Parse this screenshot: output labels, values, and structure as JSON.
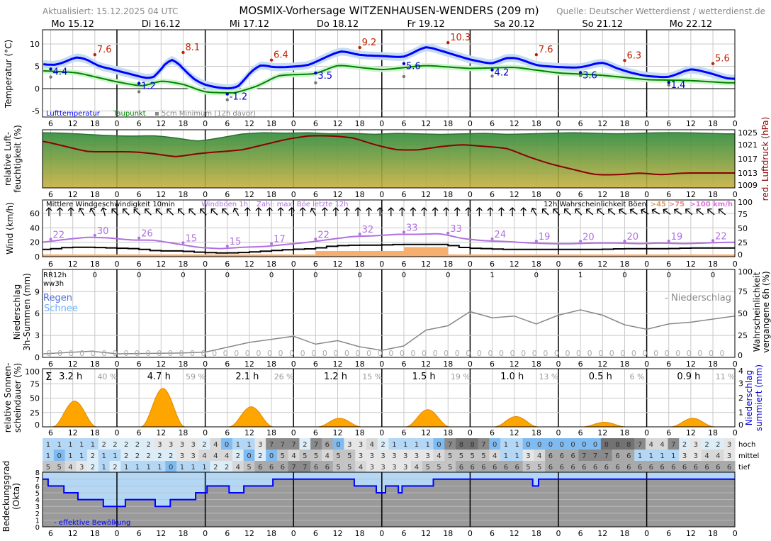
{
  "header": {
    "updated": "Aktualisiert: 15.12.2025 04 UTC",
    "title": "MOSMIX-Vorhersage WITZENHAUSEN-WENDERS (209 m)",
    "source": "Quelle: Deutscher Wetterdienst / wetterdienst.de",
    "days": [
      "Mo 15.12",
      "Di 16.12",
      "Mi 17.12",
      "Do 18.12",
      "Fr 19.12",
      "Sa 20.12",
      "So 21.12",
      "Mo 22.12"
    ]
  },
  "x_tick_labels": [
    "6",
    "12",
    "18",
    "0",
    "6",
    "12",
    "18",
    "0",
    "6",
    "12",
    "18",
    "0",
    "6",
    "12",
    "18",
    "0",
    "6",
    "12",
    "18",
    "0",
    "6",
    "12",
    "18",
    "0",
    "6",
    "12",
    "18",
    "0",
    "6",
    "12",
    "18",
    "0"
  ],
  "colors": {
    "temp": "#0000ff",
    "dew": "#008000",
    "max": "#c02000",
    "min": "#0000cc",
    "pressure": "#8b0000",
    "gust": "#b070e0",
    "wind": "#000000",
    "sun": "#ffa500",
    "prob": "#888888"
  },
  "chart_data": [
    {
      "type": "line",
      "title": "Temperatur",
      "ylabel": "Temperatur (°C)",
      "ylim": [
        -6,
        13
      ],
      "yticks": [
        "-5",
        "0",
        "5",
        "10"
      ],
      "legend": {
        "temp": "Lufttemperatur",
        "dew": "Taupunkt",
        "min5cm": "5cm Minimum (12h davor)"
      },
      "temp_hours": [
        4,
        7,
        10,
        13,
        16,
        19,
        22,
        25,
        28,
        31,
        34,
        37,
        39,
        42,
        45,
        48,
        51,
        54,
        57,
        60,
        63,
        66,
        70,
        76,
        82,
        85,
        90,
        96,
        102,
        108,
        114,
        120,
        126,
        130,
        133,
        138,
        144,
        150,
        156,
        160,
        164,
        168,
        174,
        180,
        186,
        190
      ],
      "temp": [
        5.5,
        5.2,
        6.0,
        7.2,
        6.5,
        5.0,
        4.5,
        3.8,
        3.2,
        2.5,
        2.2,
        5.5,
        7.0,
        4.5,
        2.0,
        0.8,
        0.3,
        0.0,
        0.2,
        3.5,
        5.5,
        4.8,
        4.8,
        5.2,
        7.5,
        8.5,
        7.5,
        7.3,
        7.0,
        9.5,
        8.0,
        6.5,
        5.5,
        7.0,
        6.8,
        5.2,
        4.8,
        4.7,
        6.0,
        4.5,
        3.5,
        2.8,
        2.5,
        4.5,
        3.3,
        2.2
      ],
      "dew_hours": [
        4,
        13,
        24,
        31,
        36,
        42,
        48,
        56,
        62,
        68,
        78,
        84,
        96,
        108,
        120,
        132,
        144,
        156,
        168,
        180,
        190
      ],
      "dew": [
        4.0,
        3.6,
        1.5,
        0.5,
        1.8,
        1.0,
        -0.8,
        -1.0,
        0.5,
        3.0,
        3.3,
        5.3,
        4.2,
        5.2,
        4.5,
        4.8,
        3.5,
        3.0,
        2.0,
        1.8,
        1.3
      ],
      "extremes": [
        {
          "h": 6,
          "v": 4.4,
          "kind": "min",
          "label": "4.4"
        },
        {
          "h": 18,
          "v": 7.6,
          "kind": "max",
          "label": "7.6"
        },
        {
          "h": 30,
          "v": 1.2,
          "kind": "min",
          "label": "1.2"
        },
        {
          "h": 42,
          "v": 8.1,
          "kind": "max",
          "label": "8.1"
        },
        {
          "h": 54,
          "v": -1.2,
          "kind": "min",
          "label": "-1.2"
        },
        {
          "h": 66,
          "v": 6.4,
          "kind": "max",
          "label": "6.4"
        },
        {
          "h": 78,
          "v": 3.5,
          "kind": "min",
          "label": "3.5"
        },
        {
          "h": 90,
          "v": 9.2,
          "kind": "max",
          "label": "9.2"
        },
        {
          "h": 102,
          "v": 5.6,
          "kind": "min",
          "label": "5.6"
        },
        {
          "h": 114,
          "v": 10.3,
          "kind": "max",
          "label": "10.3"
        },
        {
          "h": 126,
          "v": 4.2,
          "kind": "min",
          "label": "4.2"
        },
        {
          "h": 138,
          "v": 7.6,
          "kind": "max",
          "label": "7.6"
        },
        {
          "h": 150,
          "v": 3.6,
          "kind": "min",
          "label": "3.6"
        },
        {
          "h": 162,
          "v": 6.3,
          "kind": "max",
          "label": "6.3"
        },
        {
          "h": 174,
          "v": 1.4,
          "kind": "min",
          "label": "1.4"
        },
        {
          "h": 186,
          "v": 5.6,
          "kind": "max",
          "label": "5.6"
        }
      ],
      "min5cm": [
        {
          "h": 6,
          "v": 2.6
        },
        {
          "h": 30,
          "v": -0.7
        },
        {
          "h": 54,
          "v": -2.5
        },
        {
          "h": 78,
          "v": 1.3
        },
        {
          "h": 102,
          "v": 2.7
        },
        {
          "h": 126,
          "v": 2.8
        },
        {
          "h": 150,
          "v": 2.9
        },
        {
          "h": 174,
          "v": 0.8
        }
      ]
    },
    {
      "type": "area",
      "title": "Luftfeuchtigkeit / Luftdruck",
      "ylabel": "relative Luft-|feuchtigkeit (%)",
      "y2label": "red. Luftdruck (hPa)",
      "y2ticks": [
        "1009",
        "1013",
        "1017",
        "1021",
        "1025"
      ],
      "y2lim": [
        1009,
        1025
      ],
      "hours": [
        4,
        10,
        16,
        22,
        28,
        34,
        40,
        46,
        52,
        58,
        64,
        70,
        76,
        82,
        88,
        94,
        100,
        106,
        112,
        118,
        124,
        130,
        136,
        142,
        148,
        154,
        160,
        166,
        172,
        178,
        184,
        190
      ],
      "humidity": [
        95,
        94,
        92,
        90,
        89,
        90,
        86,
        80,
        86,
        93,
        95,
        94,
        95,
        93,
        94,
        92,
        94,
        93,
        92,
        93,
        94,
        92,
        93,
        94,
        95,
        94,
        93,
        94,
        95,
        95,
        94,
        93
      ],
      "pressure": [
        1022,
        1020.5,
        1019,
        1019,
        1019,
        1018.5,
        1017.5,
        1018.5,
        1019,
        1019.5,
        1021,
        1022.5,
        1023.5,
        1023.5,
        1023,
        1021,
        1019.5,
        1019.5,
        1020.5,
        1021,
        1020.5,
        1020,
        1017.5,
        1015.5,
        1014,
        1012.5,
        1012.5,
        1013,
        1012.5,
        1013,
        1013,
        1013
      ]
    },
    {
      "type": "line",
      "title": "Wind",
      "ylabel": "Wind (km/h)",
      "yticks": [
        "0",
        "20",
        "40",
        "60"
      ],
      "ylim": [
        0,
        80
      ],
      "y2ticks": [
        "0",
        "25",
        "50",
        "75",
        "100"
      ],
      "legend": {
        "mean": "Mittlere Windgeschwindigkeit 10min",
        "gust": "Windböen 1h",
        "max": "Zahl: max. Böe letzte 12h",
        "prob": "12h Wahrscheinlichkeit Böen",
        "p45": ">45",
        "p75": ">75",
        "p100": ">100 km/h"
      },
      "hours": [
        4,
        10,
        16,
        22,
        28,
        34,
        40,
        46,
        52,
        58,
        64,
        70,
        76,
        82,
        88,
        94,
        100,
        106,
        112,
        118,
        124,
        130,
        136,
        142,
        148,
        154,
        160,
        166,
        172,
        178,
        184,
        190
      ],
      "gust": [
        20,
        24,
        27,
        26,
        23,
        23,
        18,
        13,
        11,
        13,
        14,
        17,
        20,
        24,
        28,
        29,
        31,
        31,
        32,
        25,
        22,
        21,
        19,
        18,
        18,
        19,
        19,
        18,
        19,
        18,
        19,
        20
      ],
      "mean": [
        10,
        13,
        13,
        12,
        11,
        8,
        8,
        6,
        5,
        6,
        8,
        10,
        11,
        15,
        16,
        16,
        17,
        17,
        17,
        12,
        11,
        10,
        10,
        10,
        10,
        10,
        11,
        11,
        11,
        12,
        12,
        12
      ],
      "max_gust_labels": [
        {
          "h": 6,
          "label": "22"
        },
        {
          "h": 18,
          "label": "30"
        },
        {
          "h": 30,
          "label": "26"
        },
        {
          "h": 42,
          "label": "15"
        },
        {
          "h": 54,
          "label": "15"
        },
        {
          "h": 66,
          "label": "17"
        },
        {
          "h": 78,
          "label": "22"
        },
        {
          "h": 90,
          "label": "32"
        },
        {
          "h": 102,
          "label": "33"
        },
        {
          "h": 114,
          "label": "33"
        },
        {
          "h": 126,
          "label": "24"
        },
        {
          "h": 138,
          "label": "19"
        },
        {
          "h": 150,
          "label": "20"
        },
        {
          "h": 162,
          "label": "20"
        },
        {
          "h": 174,
          "label": "19"
        },
        {
          "h": 186,
          "label": "22"
        }
      ],
      "prob_45_segments": [
        [
          0,
          78,
          4
        ],
        [
          78,
          102,
          10
        ],
        [
          102,
          114,
          17
        ],
        [
          114,
          192,
          4
        ]
      ],
      "arrow_angles_deg": [
        0,
        0,
        0,
        -30,
        -30,
        -15,
        -45,
        -45,
        -45,
        -45,
        -45,
        -45,
        -45,
        -45,
        -45,
        -45,
        -45,
        -30,
        0,
        0,
        0,
        0,
        0,
        0,
        -30,
        0,
        0,
        0,
        0,
        0,
        0,
        0,
        0,
        0,
        0,
        0,
        0,
        0,
        0,
        0,
        0,
        0,
        0,
        0,
        -30,
        -45,
        -45,
        -45,
        -45,
        -50,
        -50,
        -50,
        -55,
        -55,
        -60,
        -60,
        -55,
        -55,
        -50,
        -50,
        -50,
        -50
      ]
    },
    {
      "type": "line",
      "title": "Niederschlag",
      "ylabel": "Niederschlag|3h-Summen (mm)",
      "y2label": "Wahrscheinlichkeit|vergangene 6h (%)",
      "yticks": [
        "0",
        "3",
        "6",
        "9"
      ],
      "y2ticks": [
        "0",
        "25",
        "50",
        "75",
        "100"
      ],
      "rr_label": "RR12h",
      "ww_label": "ww3h",
      "rain_label": "Regen",
      "snow_label": "Schnee",
      "prob_label": "- Niederschlag",
      "rr12h": [
        "0",
        "0",
        "0",
        "0",
        "0",
        "0",
        "0",
        "0",
        "0",
        "1",
        "0",
        "1",
        "0",
        "0",
        "0"
      ],
      "rr3h": [
        "0",
        "0",
        "0",
        "0",
        "0",
        "0",
        "0",
        "0",
        "0",
        "0",
        "0",
        "0",
        "0",
        "0",
        "0",
        "0",
        "0",
        "0",
        "0",
        "0",
        "0",
        "0",
        "0",
        "0",
        "0",
        "0",
        "0",
        "0",
        "0",
        "0",
        "0",
        "0",
        "0",
        "0",
        "0",
        "0",
        "0",
        "0",
        "0",
        "0",
        "0",
        "0",
        "0",
        "0",
        "0",
        "0",
        "0",
        "0",
        "0",
        "0",
        "0",
        "0",
        "0",
        "0",
        "0",
        "0",
        "0",
        "0",
        "0",
        "0",
        "0",
        "0"
      ],
      "prob_hours": [
        4,
        17,
        24,
        42,
        48,
        60,
        72,
        78,
        84,
        90,
        96,
        102,
        108,
        114,
        120,
        126,
        132,
        138,
        144,
        150,
        156,
        162,
        168,
        174,
        180,
        192
      ],
      "prob_pct": [
        4,
        7,
        4,
        5,
        6,
        17,
        24,
        15,
        19,
        12,
        8,
        13,
        31,
        36,
        52,
        45,
        47,
        38,
        48,
        54,
        48,
        37,
        32,
        38,
        40,
        47
      ]
    },
    {
      "type": "area",
      "title": "Sonnenscheindauer",
      "ylabel": "relative Sonnen-|scheindauer (%)",
      "y2label": "Niederschlag|summiert (mm)",
      "yticks": [
        "0",
        "25",
        "50",
        "75",
        "100"
      ],
      "y2ticks": [
        "0",
        "1",
        "2",
        "3",
        "4"
      ],
      "sigma": "Σ",
      "daily_hours": [
        "3.2 h",
        "4.7 h",
        "2.1 h",
        "1.2 h",
        "1.5 h",
        "1.0 h",
        "0.5 h",
        "0.9 h"
      ],
      "daily_pct": [
        "40 %",
        "59 %",
        "26 %",
        "15 %",
        "19 %",
        "13 %",
        "6 %",
        "11 %"
      ],
      "peak_pct": [
        45,
        67,
        35,
        15,
        30,
        18,
        8,
        15
      ]
    },
    {
      "type": "heatmap",
      "title": "Bedeckungsgrad",
      "ylabel": "Bedeckungsgrad|(Okta)",
      "row_labels": [
        "hoch",
        "mittel",
        "tief"
      ],
      "rows": [
        [
          1,
          1,
          1,
          1,
          1,
          2,
          2,
          2,
          2,
          2,
          3,
          3,
          3,
          3,
          2,
          4,
          0,
          1,
          1,
          3,
          7,
          7,
          7,
          2,
          7,
          6,
          0,
          3,
          3,
          4,
          2,
          1,
          1,
          1,
          1,
          0,
          7,
          8,
          8,
          7,
          0,
          1,
          1,
          0,
          0,
          0,
          0,
          0,
          0,
          0,
          8,
          8,
          8,
          7,
          4,
          4,
          7,
          2,
          3,
          2,
          2,
          3
        ],
        [
          1,
          0,
          1,
          1,
          2,
          1,
          1,
          2,
          2,
          2,
          2,
          2,
          3,
          3,
          4,
          4,
          4,
          2,
          0,
          2,
          0,
          5,
          4,
          5,
          5,
          4,
          5,
          5,
          3,
          3,
          3,
          3,
          3,
          3,
          3,
          4,
          5,
          5,
          5,
          5,
          4,
          1,
          1,
          3,
          4,
          6,
          6,
          6,
          7,
          7,
          7,
          6,
          6,
          1,
          1,
          1,
          1,
          3,
          3,
          4,
          4,
          3
        ],
        [
          5,
          5,
          4,
          3,
          2,
          1,
          2,
          1,
          1,
          1,
          1,
          0,
          1,
          1,
          1,
          2,
          2,
          4,
          5,
          6,
          6,
          6,
          7,
          7,
          6,
          6,
          5,
          5,
          4,
          3,
          3,
          3,
          3,
          4,
          5,
          5,
          5,
          6,
          6,
          6,
          6,
          6,
          6,
          5,
          5,
          6,
          6,
          6,
          6,
          6,
          6,
          6,
          6,
          6,
          6,
          6,
          6,
          6,
          6,
          6,
          6,
          6
        ]
      ],
      "yticks": [
        "0",
        "1",
        "2",
        "3",
        "4",
        "5",
        "6",
        "7",
        "8"
      ],
      "effective_label": "- effektive Bewölkung",
      "effective_steps": [
        [
          0,
          7
        ],
        [
          5.3,
          6
        ],
        [
          9.6,
          5
        ],
        [
          13.4,
          4
        ],
        [
          20.3,
          3
        ],
        [
          26.3,
          4
        ],
        [
          34.4,
          3
        ],
        [
          38.5,
          4
        ],
        [
          45.4,
          5
        ],
        [
          48.5,
          6
        ],
        [
          54.5,
          5
        ],
        [
          58.5,
          6
        ],
        [
          66.4,
          7
        ],
        [
          88.5,
          6
        ],
        [
          94.5,
          5
        ],
        [
          97,
          6
        ],
        [
          100.5,
          5
        ],
        [
          101.5,
          6
        ],
        [
          110,
          7
        ],
        [
          137,
          6
        ],
        [
          138.6,
          7
        ],
        [
          192,
          7
        ]
      ]
    }
  ]
}
